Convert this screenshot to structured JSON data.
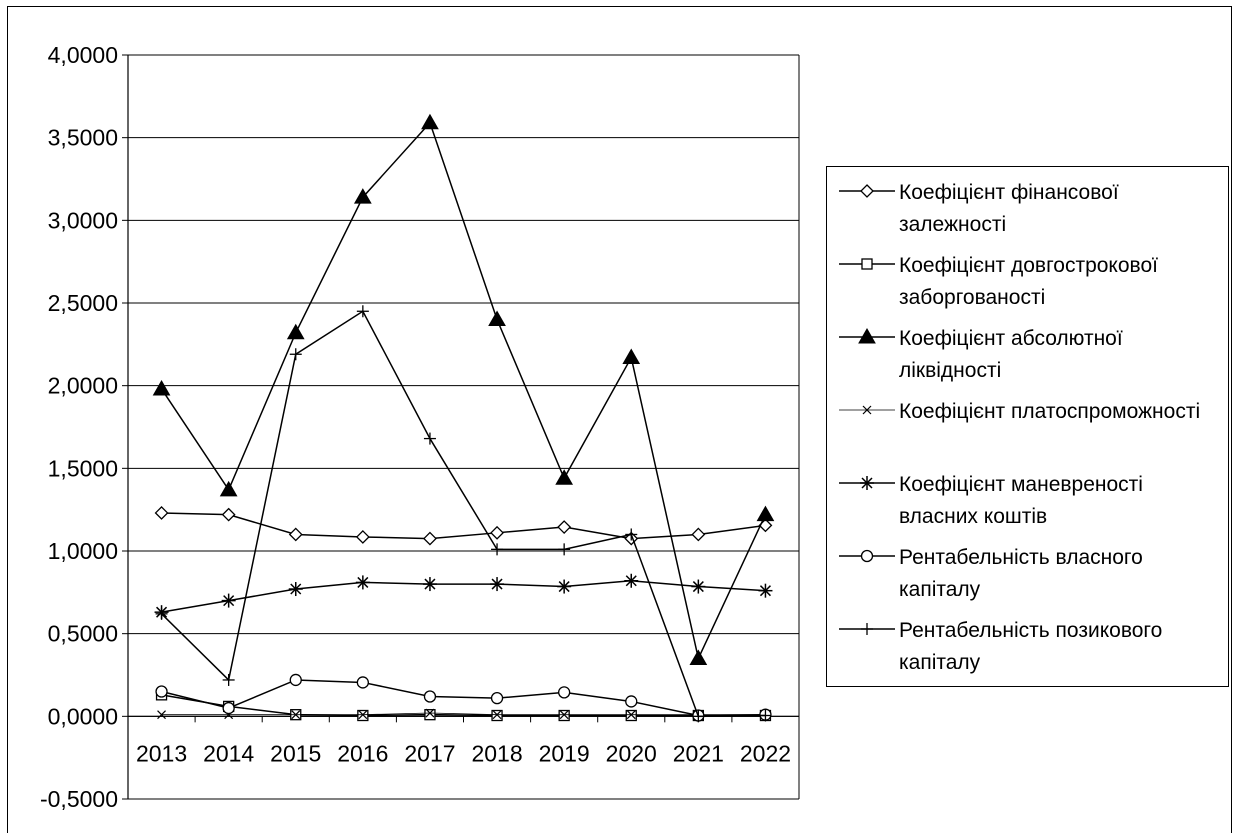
{
  "chart_data": {
    "type": "line",
    "title": "",
    "xlabel": "",
    "ylabel": "",
    "categories": [
      "2013",
      "2014",
      "2015",
      "2016",
      "2017",
      "2018",
      "2019",
      "2020",
      "2021",
      "2022"
    ],
    "ylim": [
      -0.5,
      4.0
    ],
    "y_ticks": [
      "4,0000",
      "3,5000",
      "3,0000",
      "2,5000",
      "2,0000",
      "1,5000",
      "1,0000",
      "0,5000",
      "0,0000",
      "-0,5000"
    ],
    "grid": true,
    "legend_position": "right",
    "series": [
      {
        "name": "Коефіцієнт фінансової залежності",
        "marker": "diamond",
        "values": [
          1.23,
          1.22,
          1.1,
          1.085,
          1.075,
          1.11,
          1.145,
          1.075,
          1.1,
          1.155
        ]
      },
      {
        "name": "Коефіцієнт довгострокової заборгованості",
        "marker": "square",
        "values": [
          0.13,
          0.06,
          0.01,
          0.005,
          0.01,
          0.005,
          0.005,
          0.005,
          0.005,
          0.005
        ]
      },
      {
        "name": "Коефіцієнт абсолютної ліквідності",
        "marker": "triangle",
        "values": [
          1.98,
          1.37,
          2.32,
          3.14,
          3.59,
          2.4,
          1.44,
          2.17,
          0.35,
          1.22
        ]
      },
      {
        "name": "Коефіцієнт платоспроможності",
        "marker": "x",
        "values": [
          0.01,
          0.01,
          0.01,
          0.01,
          0.02,
          0.01,
          0.01,
          0.01,
          0.01,
          0.01
        ]
      },
      {
        "name": "Коефіцієнт маневреності власних коштів",
        "marker": "star",
        "values": [
          0.63,
          0.7,
          0.77,
          0.81,
          0.8,
          0.8,
          0.785,
          0.82,
          0.785,
          0.76
        ]
      },
      {
        "name": "Рентабельність власного капіталу",
        "marker": "circle",
        "values": [
          0.15,
          0.05,
          0.22,
          0.205,
          0.12,
          0.11,
          0.145,
          0.09,
          0.005,
          0.01
        ]
      },
      {
        "name": "Рентабельність позикового капіталу",
        "marker": "plus",
        "values": [
          0.62,
          0.22,
          2.19,
          2.45,
          1.68,
          1.01,
          1.01,
          1.1,
          0.0,
          0.005
        ]
      }
    ]
  },
  "legend": {
    "items": [
      "Коефіцієнт фінансової залежності",
      "Коефіцієнт довгострокової заборгованості",
      "Коефіцієнт абсолютної ліквідності",
      "Коефіцієнт платоспроможності",
      "Коефіцієнт маневреності власних коштів",
      "Рентабельність власного капіталу",
      "Рентабельність позикового капіталу"
    ]
  },
  "colors": {
    "line": "#000000",
    "grid": "#000000",
    "background": "#ffffff"
  }
}
